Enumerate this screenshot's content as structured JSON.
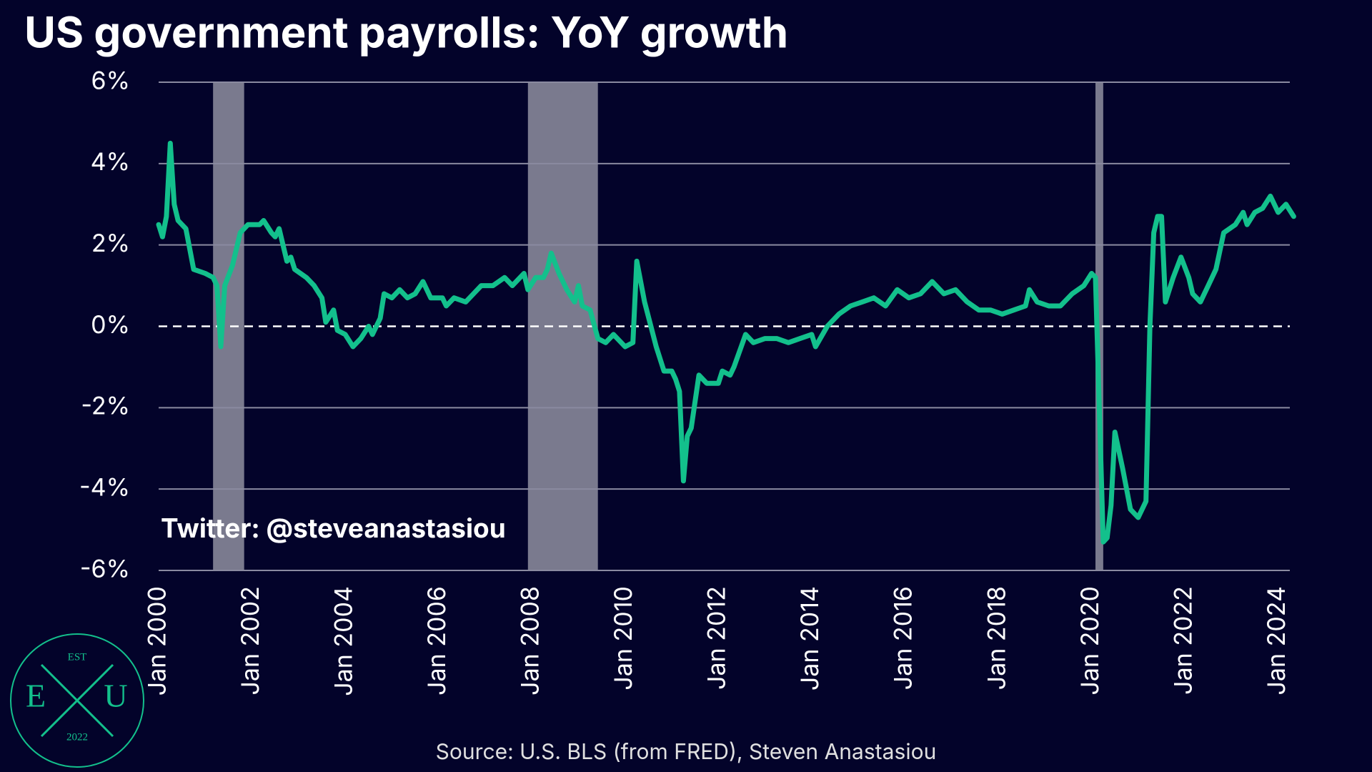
{
  "chart_data": {
    "type": "line",
    "title": "US government payrolls: YoY growth",
    "source": "Source: U.S. BLS (from FRED), Steven Anastasiou",
    "annotation": "Twitter: @steveanastasiou",
    "logo": {
      "top": "EST",
      "left": "E",
      "right": "U",
      "bottom": "2022"
    },
    "color": "#13c08c",
    "x": [
      "2000-01",
      "2000-02",
      "2000-03",
      "2000-04",
      "2000-05",
      "2000-06",
      "2000-08",
      "2000-10",
      "2001-01",
      "2001-03",
      "2001-04",
      "2001-05",
      "2001-06",
      "2001-08",
      "2001-10",
      "2001-12",
      "2002-03",
      "2002-04",
      "2002-06",
      "2002-07",
      "2002-08",
      "2002-10",
      "2002-11",
      "2002-12",
      "2003-03",
      "2003-05",
      "2003-07",
      "2003-08",
      "2003-10",
      "2003-11",
      "2004-01",
      "2004-03",
      "2004-05",
      "2004-07",
      "2004-08",
      "2004-10",
      "2004-11",
      "2005-01",
      "2005-03",
      "2005-05",
      "2005-07",
      "2005-09",
      "2005-11",
      "2006-02",
      "2006-03",
      "2006-05",
      "2006-08",
      "2006-10",
      "2006-12",
      "2007-03",
      "2007-06",
      "2007-08",
      "2007-11",
      "2007-12",
      "2008-02",
      "2008-04",
      "2008-05",
      "2008-06",
      "2008-08",
      "2008-10",
      "2008-12",
      "2009-01",
      "2009-02",
      "2009-04",
      "2009-06",
      "2009-08",
      "2009-10",
      "2010-01",
      "2010-03",
      "2010-04",
      "2010-06",
      "2010-09",
      "2010-11",
      "2011-01",
      "2011-02",
      "2011-03",
      "2011-04",
      "2011-05",
      "2011-06",
      "2011-08",
      "2011-10",
      "2012-01",
      "2012-02",
      "2012-04",
      "2012-05",
      "2012-08",
      "2012-10",
      "2013-01",
      "2013-04",
      "2013-07",
      "2013-10",
      "2014-01",
      "2014-02",
      "2014-05",
      "2014-08",
      "2014-11",
      "2015-02",
      "2015-05",
      "2015-08",
      "2015-11",
      "2016-02",
      "2016-05",
      "2016-08",
      "2016-11",
      "2017-02",
      "2017-05",
      "2017-08",
      "2017-11",
      "2018-02",
      "2018-05",
      "2018-08",
      "2018-09",
      "2018-11",
      "2019-02",
      "2019-05",
      "2019-08",
      "2019-11",
      "2020-01",
      "2020-02",
      "2020-04",
      "2020-05",
      "2020-06",
      "2020-07",
      "2020-09",
      "2020-11",
      "2021-01",
      "2021-03",
      "2021-04",
      "2021-05",
      "2021-06",
      "2021-07",
      "2021-08",
      "2021-10",
      "2021-12",
      "2022-02",
      "2022-03",
      "2022-05",
      "2022-07",
      "2022-09",
      "2022-11",
      "2023-02",
      "2023-04",
      "2023-05",
      "2023-07",
      "2023-09",
      "2023-11",
      "2024-01",
      "2024-03",
      "2024-05"
    ],
    "series": [
      {
        "name": "Government payrolls YoY",
        "color": "#13c08c",
        "values": [
          2.5,
          2.2,
          2.7,
          4.5,
          3.0,
          2.6,
          2.4,
          1.4,
          1.3,
          1.2,
          1.0,
          -0.5,
          1.0,
          1.5,
          2.3,
          2.5,
          2.5,
          2.6,
          2.3,
          2.2,
          2.4,
          1.6,
          1.7,
          1.4,
          1.2,
          1.0,
          0.7,
          0.1,
          0.4,
          -0.1,
          -0.2,
          -0.5,
          -0.3,
          0.0,
          -0.2,
          0.2,
          0.8,
          0.7,
          0.9,
          0.7,
          0.8,
          1.1,
          0.7,
          0.7,
          0.5,
          0.7,
          0.6,
          0.8,
          1.0,
          1.0,
          1.2,
          1.0,
          1.3,
          0.9,
          1.2,
          1.2,
          1.4,
          1.8,
          1.3,
          0.9,
          0.6,
          1.0,
          0.5,
          0.4,
          -0.3,
          -0.4,
          -0.2,
          -0.5,
          -0.4,
          1.6,
          0.6,
          -0.5,
          -1.1,
          -1.1,
          -1.3,
          -1.6,
          -3.8,
          -2.7,
          -2.5,
          -1.2,
          -1.4,
          -1.4,
          -1.1,
          -1.2,
          -1.0,
          -0.2,
          -0.4,
          -0.3,
          -0.3,
          -0.4,
          -0.3,
          -0.2,
          -0.5,
          0.0,
          0.3,
          0.5,
          0.6,
          0.7,
          0.5,
          0.9,
          0.7,
          0.8,
          1.1,
          0.8,
          0.9,
          0.6,
          0.4,
          0.4,
          0.3,
          0.4,
          0.5,
          0.9,
          0.6,
          0.5,
          0.5,
          0.8,
          1.0,
          1.3,
          1.2,
          -5.3,
          -5.2,
          -4.4,
          -2.6,
          -3.5,
          -4.5,
          -4.7,
          -4.3,
          0.0,
          2.3,
          2.7,
          2.7,
          0.6,
          1.2,
          1.7,
          1.2,
          0.8,
          0.6,
          1.0,
          1.4,
          2.3,
          2.5,
          2.8,
          2.5,
          2.8,
          2.9,
          3.2,
          2.8,
          3.0,
          2.7
        ]
      }
    ],
    "recessions": [
      [
        "2001-03",
        "2001-11"
      ],
      [
        "2007-12",
        "2009-06"
      ],
      [
        "2020-02",
        "2020-04"
      ]
    ],
    "hline": 0,
    "xlim": [
      "2000-01",
      "2024-04"
    ],
    "xticks": [
      {
        "value": "2000-01",
        "label": "Jan 2000"
      },
      {
        "value": "2002-01",
        "label": "Jan 2002"
      },
      {
        "value": "2004-01",
        "label": "Jan 2004"
      },
      {
        "value": "2006-01",
        "label": "Jan 2006"
      },
      {
        "value": "2008-01",
        "label": "Jan 2008"
      },
      {
        "value": "2010-01",
        "label": "Jan 2010"
      },
      {
        "value": "2012-01",
        "label": "Jan 2012"
      },
      {
        "value": "2014-01",
        "label": "Jan 2014"
      },
      {
        "value": "2016-01",
        "label": "Jan 2016"
      },
      {
        "value": "2018-01",
        "label": "Jan 2018"
      },
      {
        "value": "2020-01",
        "label": "Jan 2020"
      },
      {
        "value": "2022-01",
        "label": "Jan 2022"
      },
      {
        "value": "2024-01",
        "label": "Jan 2024"
      }
    ],
    "ylim": [
      -6,
      6
    ],
    "yticks": [
      {
        "value": -6,
        "label": "-6%"
      },
      {
        "value": -4,
        "label": "-4%"
      },
      {
        "value": -2,
        "label": "-2%"
      },
      {
        "value": 0,
        "label": "0%"
      },
      {
        "value": 2,
        "label": "2%"
      },
      {
        "value": 4,
        "label": "4%"
      },
      {
        "value": 6,
        "label": "6%"
      }
    ],
    "grid": true
  }
}
